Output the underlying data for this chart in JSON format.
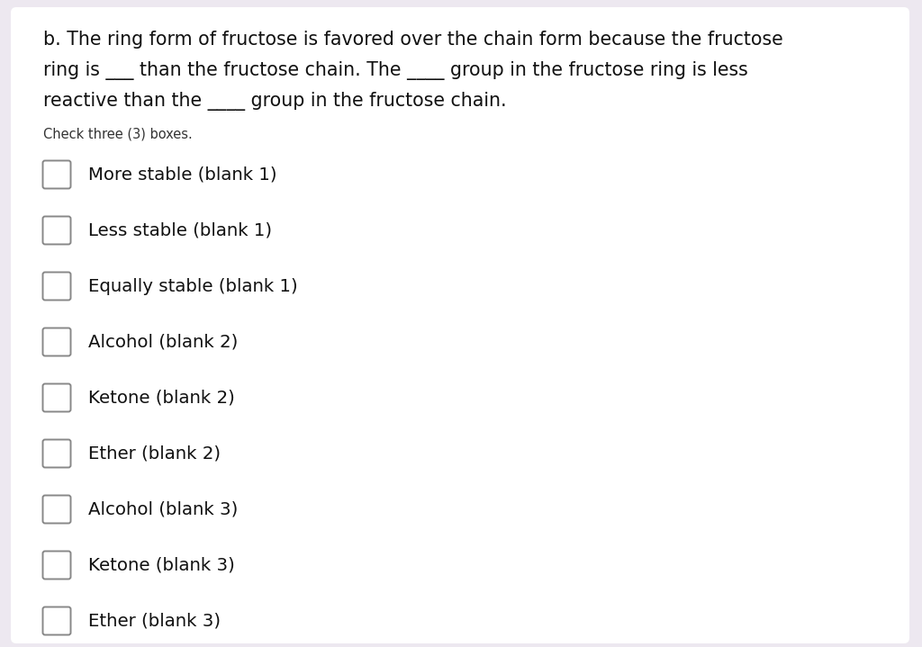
{
  "background_color": "#ffffff",
  "outer_background": "#ede8f0",
  "card_background": "#ffffff",
  "title_lines": [
    "b. The ring form of fructose is favored over the chain form because the fructose",
    "ring is ___ than the fructose chain. The ____ group in the fructose ring is less",
    "reactive than the ____ group in the fructose chain."
  ],
  "subtitle": "Check three (3) boxes.",
  "options": [
    "More stable (blank 1)",
    "Less stable (blank 1)",
    "Equally stable (blank 1)",
    "Alcohol (blank 2)",
    "Ketone (blank 2)",
    "Ether (blank 2)",
    "Alcohol (blank 3)",
    "Ketone (blank 3)",
    "Ether (blank 3)"
  ],
  "title_fontsize": 14.8,
  "subtitle_fontsize": 10.5,
  "option_fontsize": 14.2,
  "title_color": "#111111",
  "subtitle_color": "#333333",
  "option_color": "#111111",
  "checkbox_edge_color": "#888888",
  "checkbox_linewidth": 1.4,
  "title_fontweight": "normal",
  "subtitle_fontweight": "normal"
}
